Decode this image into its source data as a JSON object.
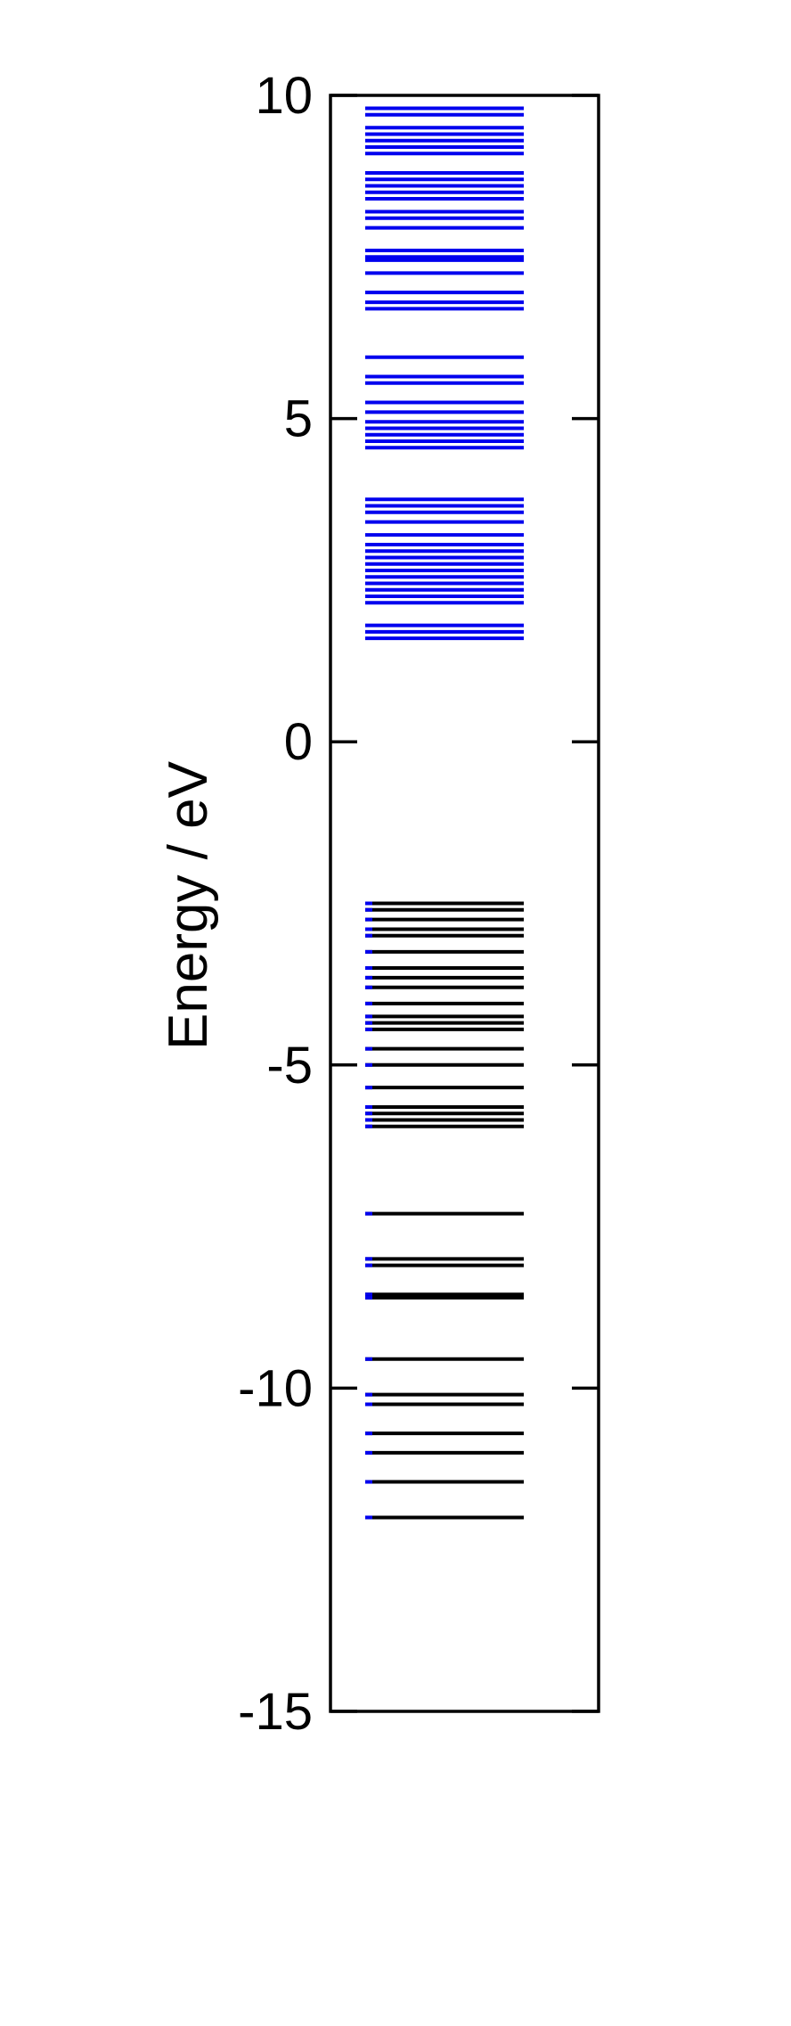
{
  "chart_data": {
    "type": "energy-level diagram",
    "ylabel": "Energy / eV",
    "ylim": [
      -15,
      10
    ],
    "yticks": [
      10,
      5,
      0,
      -5,
      -10,
      -15
    ],
    "ytick_labels": [
      "10",
      "5",
      "0",
      "-5",
      "-10",
      "-15"
    ],
    "grid": false,
    "legend": "none",
    "series": [
      {
        "color": "#0000ee",
        "values": [
          9.8,
          9.7,
          9.5,
          9.4,
          9.3,
          9.2,
          9.1,
          8.8,
          8.7,
          8.6,
          8.5,
          8.4,
          8.2,
          8.1,
          7.95,
          7.6,
          7.5,
          7.45,
          7.25,
          6.95,
          6.8,
          6.7,
          5.95,
          5.65,
          5.55,
          5.25,
          5.1,
          4.95,
          4.85,
          4.75,
          4.65,
          4.55,
          3.75,
          3.65,
          3.55,
          3.4,
          3.2,
          3.05,
          2.95,
          2.85,
          2.75,
          2.65,
          2.55,
          2.45,
          2.35,
          2.25,
          2.15,
          1.8,
          1.7,
          1.6
        ]
      },
      {
        "color": "#000000",
        "values": [
          -2.5,
          -2.6,
          -2.75,
          -2.9,
          -3.0,
          -3.25,
          -3.5,
          -3.65,
          -3.8,
          -4.05,
          -4.25,
          -4.35,
          -4.45,
          -4.75,
          -5.0,
          -5.35,
          -5.65,
          -5.75,
          -5.85,
          -5.95,
          -7.3,
          -8.0,
          -8.1,
          -8.55,
          -8.6,
          -9.55,
          -10.1,
          -10.25,
          -10.7,
          -11.0,
          -11.45,
          -12.0
        ]
      }
    ]
  }
}
